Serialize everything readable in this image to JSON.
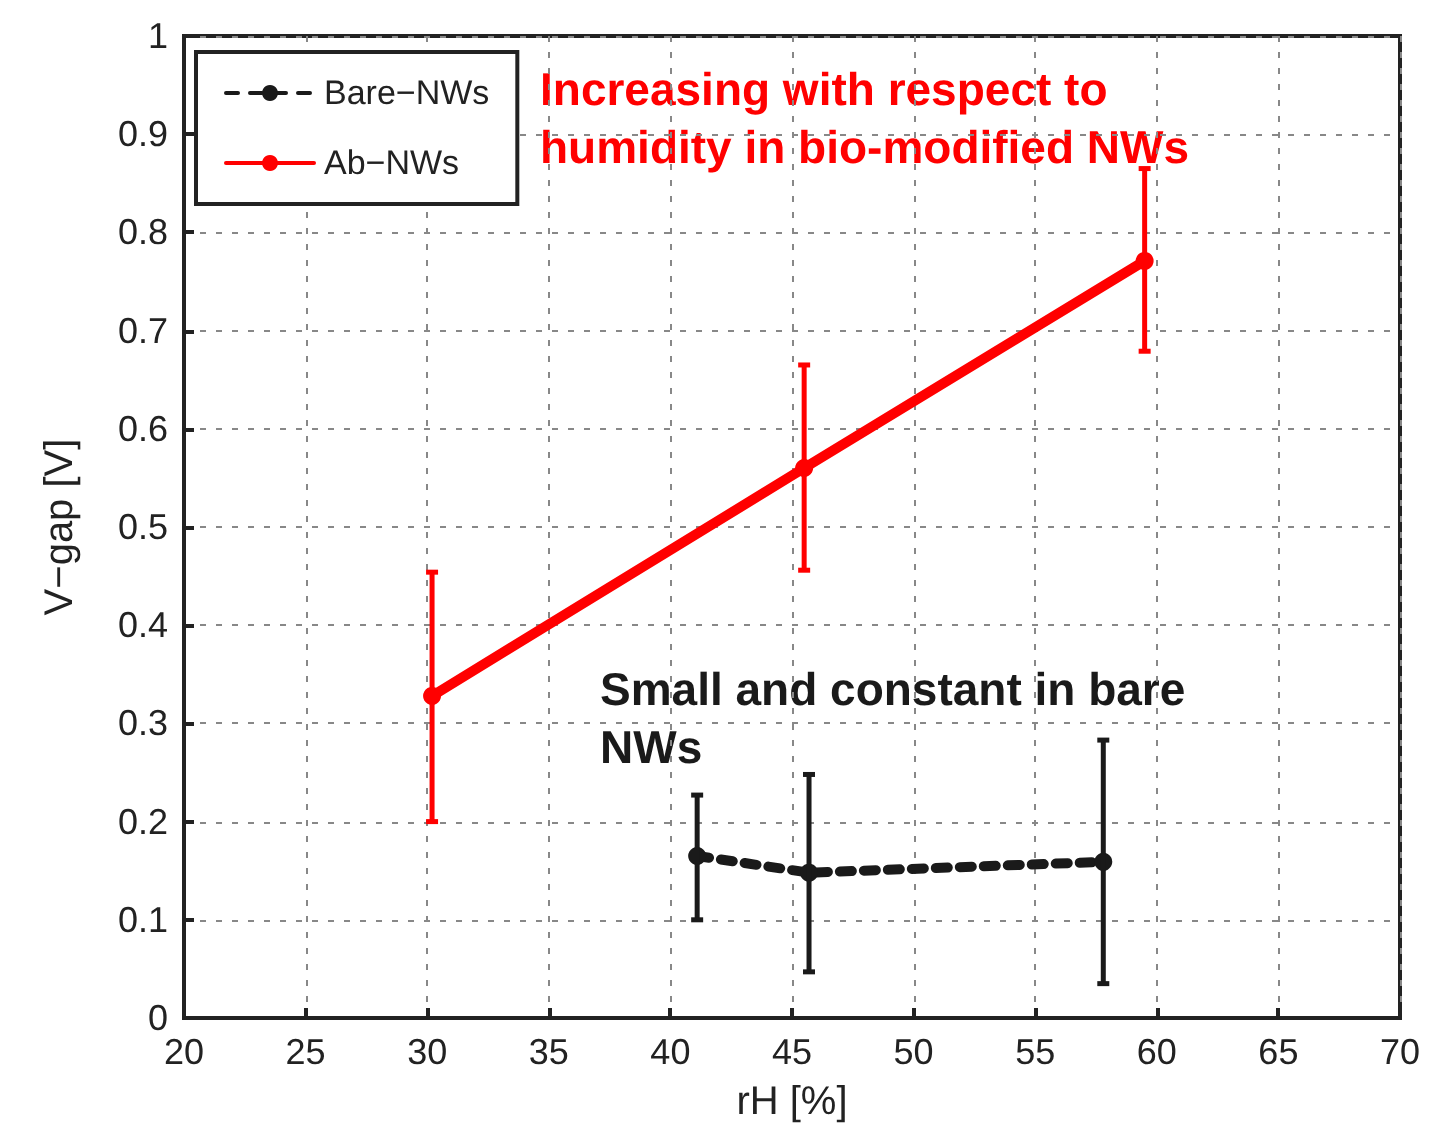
{
  "chart_data": {
    "type": "line",
    "xlabel": "rH [%]",
    "ylabel": "V−gap [V]",
    "xlim": [
      20,
      70
    ],
    "xticks": [
      20,
      25,
      30,
      35,
      40,
      45,
      50,
      55,
      60,
      65,
      70
    ],
    "ylim": [
      0,
      1
    ],
    "yticks": [
      0,
      0.1,
      0.2,
      0.3,
      0.4,
      0.5,
      0.6,
      0.7,
      0.8,
      0.9,
      1
    ],
    "grid": true,
    "legend": "top left",
    "marker": "circle",
    "annotations": [
      "Increasing with respect to humidity in bio-modified NWs",
      "Small and constant in bare NWs"
    ],
    "series": [
      {
        "name": "Bare−NWs",
        "color": "#1a1a1a",
        "line_style": "dashed",
        "x": [
          41.1,
          45.7,
          57.8
        ],
        "values": [
          0.165,
          0.148,
          0.159
        ],
        "errors": [
          [
            0.1,
            0.227
          ],
          [
            0.047,
            0.248
          ],
          [
            0.035,
            0.283
          ]
        ]
      },
      {
        "name": "Ab−NWs",
        "color": "#ff0000",
        "line_style": "solid",
        "x": [
          30.2,
          45.5,
          59.5
        ],
        "values": [
          0.328,
          0.56,
          0.771
        ],
        "errors": [
          [
            0.2,
            0.454
          ],
          [
            0.456,
            0.665
          ],
          [
            0.679,
            0.865
          ]
        ]
      }
    ]
  }
}
